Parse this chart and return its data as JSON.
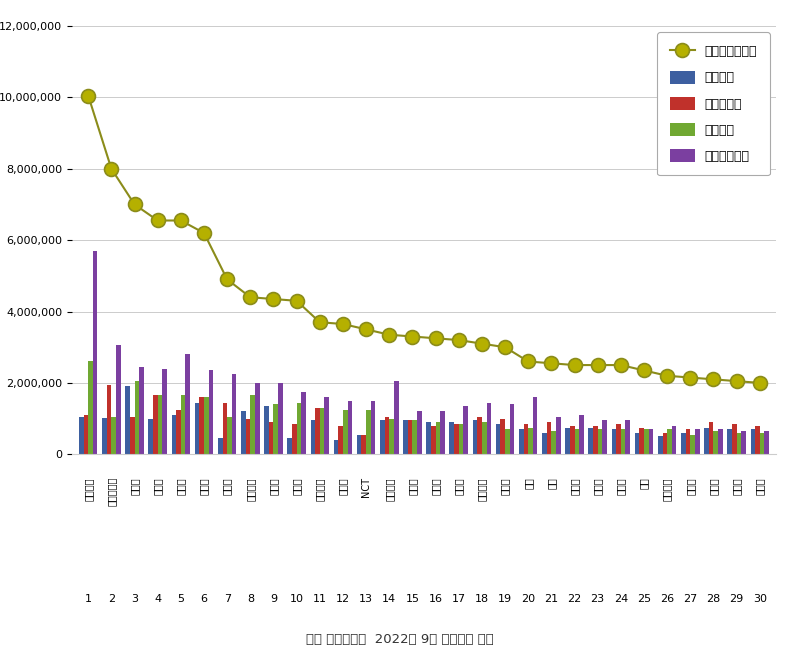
{
  "categories": [
    "블랙픕크",
    "방탄소년단",
    "손흥민",
    "이정재",
    "아이유",
    "임영웅",
    "유재석",
    "소녀시대",
    "아이브",
    "박은빈",
    "트와이스",
    "이찬원",
    "NCT",
    "강다니엘",
    "김하온",
    "뉴진스",
    "세븐틴",
    "레드벨벳",
    "배종원",
    "연연",
    "태연",
    "이승석",
    "이승기",
    "김연아",
    "한빈",
    "오마이걸",
    "송가인",
    "정우성",
    "이병헌",
    "김종민"
  ],
  "rank": [
    1,
    2,
    3,
    4,
    5,
    6,
    7,
    8,
    9,
    10,
    11,
    12,
    13,
    14,
    15,
    16,
    17,
    18,
    19,
    20,
    21,
    22,
    23,
    24,
    25,
    26,
    27,
    28,
    29,
    30
  ],
  "participation": [
    1050000,
    1020000,
    1900000,
    1000000,
    1100000,
    1450000,
    450000,
    1200000,
    1350000,
    450000,
    950000,
    400000,
    550000,
    950000,
    950000,
    900000,
    900000,
    950000,
    850000,
    700000,
    600000,
    750000,
    750000,
    700000,
    600000,
    500000,
    600000,
    750000,
    700000,
    700000
  ],
  "media": [
    1100000,
    1950000,
    1050000,
    1650000,
    1250000,
    1600000,
    1450000,
    1000000,
    900000,
    850000,
    1300000,
    800000,
    550000,
    1050000,
    950000,
    800000,
    850000,
    1050000,
    1000000,
    850000,
    900000,
    800000,
    800000,
    850000,
    750000,
    600000,
    700000,
    900000,
    850000,
    800000
  ],
  "communication": [
    2600000,
    1050000,
    2050000,
    1650000,
    1650000,
    1600000,
    1050000,
    1650000,
    1400000,
    1450000,
    1300000,
    1250000,
    1250000,
    1000000,
    950000,
    900000,
    850000,
    900000,
    700000,
    750000,
    650000,
    700000,
    700000,
    700000,
    700000,
    700000,
    550000,
    650000,
    600000,
    600000
  ],
  "community": [
    5700000,
    3050000,
    2450000,
    2400000,
    2800000,
    2350000,
    2250000,
    2000000,
    2000000,
    1750000,
    1600000,
    1500000,
    1500000,
    2050000,
    1200000,
    1200000,
    1350000,
    1450000,
    1400000,
    1600000,
    1050000,
    1100000,
    950000,
    950000,
    700000,
    800000,
    700000,
    700000,
    650000,
    650000
  ],
  "brand": [
    10050000,
    8000000,
    7000000,
    6550000,
    6550000,
    6200000,
    4900000,
    4400000,
    4350000,
    4300000,
    3700000,
    3650000,
    3500000,
    3350000,
    3300000,
    3250000,
    3200000,
    3100000,
    3000000,
    2600000,
    2550000,
    2500000,
    2500000,
    2500000,
    2350000,
    2200000,
    2150000,
    2100000,
    2050000,
    2000000
  ],
  "bar_colors": {
    "participation": "#3d5fa0",
    "media": "#c0312b",
    "communication": "#70a832",
    "community": "#7b3fa0"
  },
  "line_color": "#8b8c1a",
  "line_marker_color": "#b5b000",
  "background_color": "#ffffff",
  "title": "스타 브랜드평판  2022년 9월 빅데이터 분석",
  "legend_labels": [
    "참여지수",
    "미디어지수",
    "소통지수",
    "커뮤니티지수",
    "브랜드평판지수"
  ],
  "ylim": [
    0,
    12000000
  ],
  "yticks": [
    0,
    2000000,
    4000000,
    6000000,
    8000000,
    10000000,
    12000000
  ]
}
